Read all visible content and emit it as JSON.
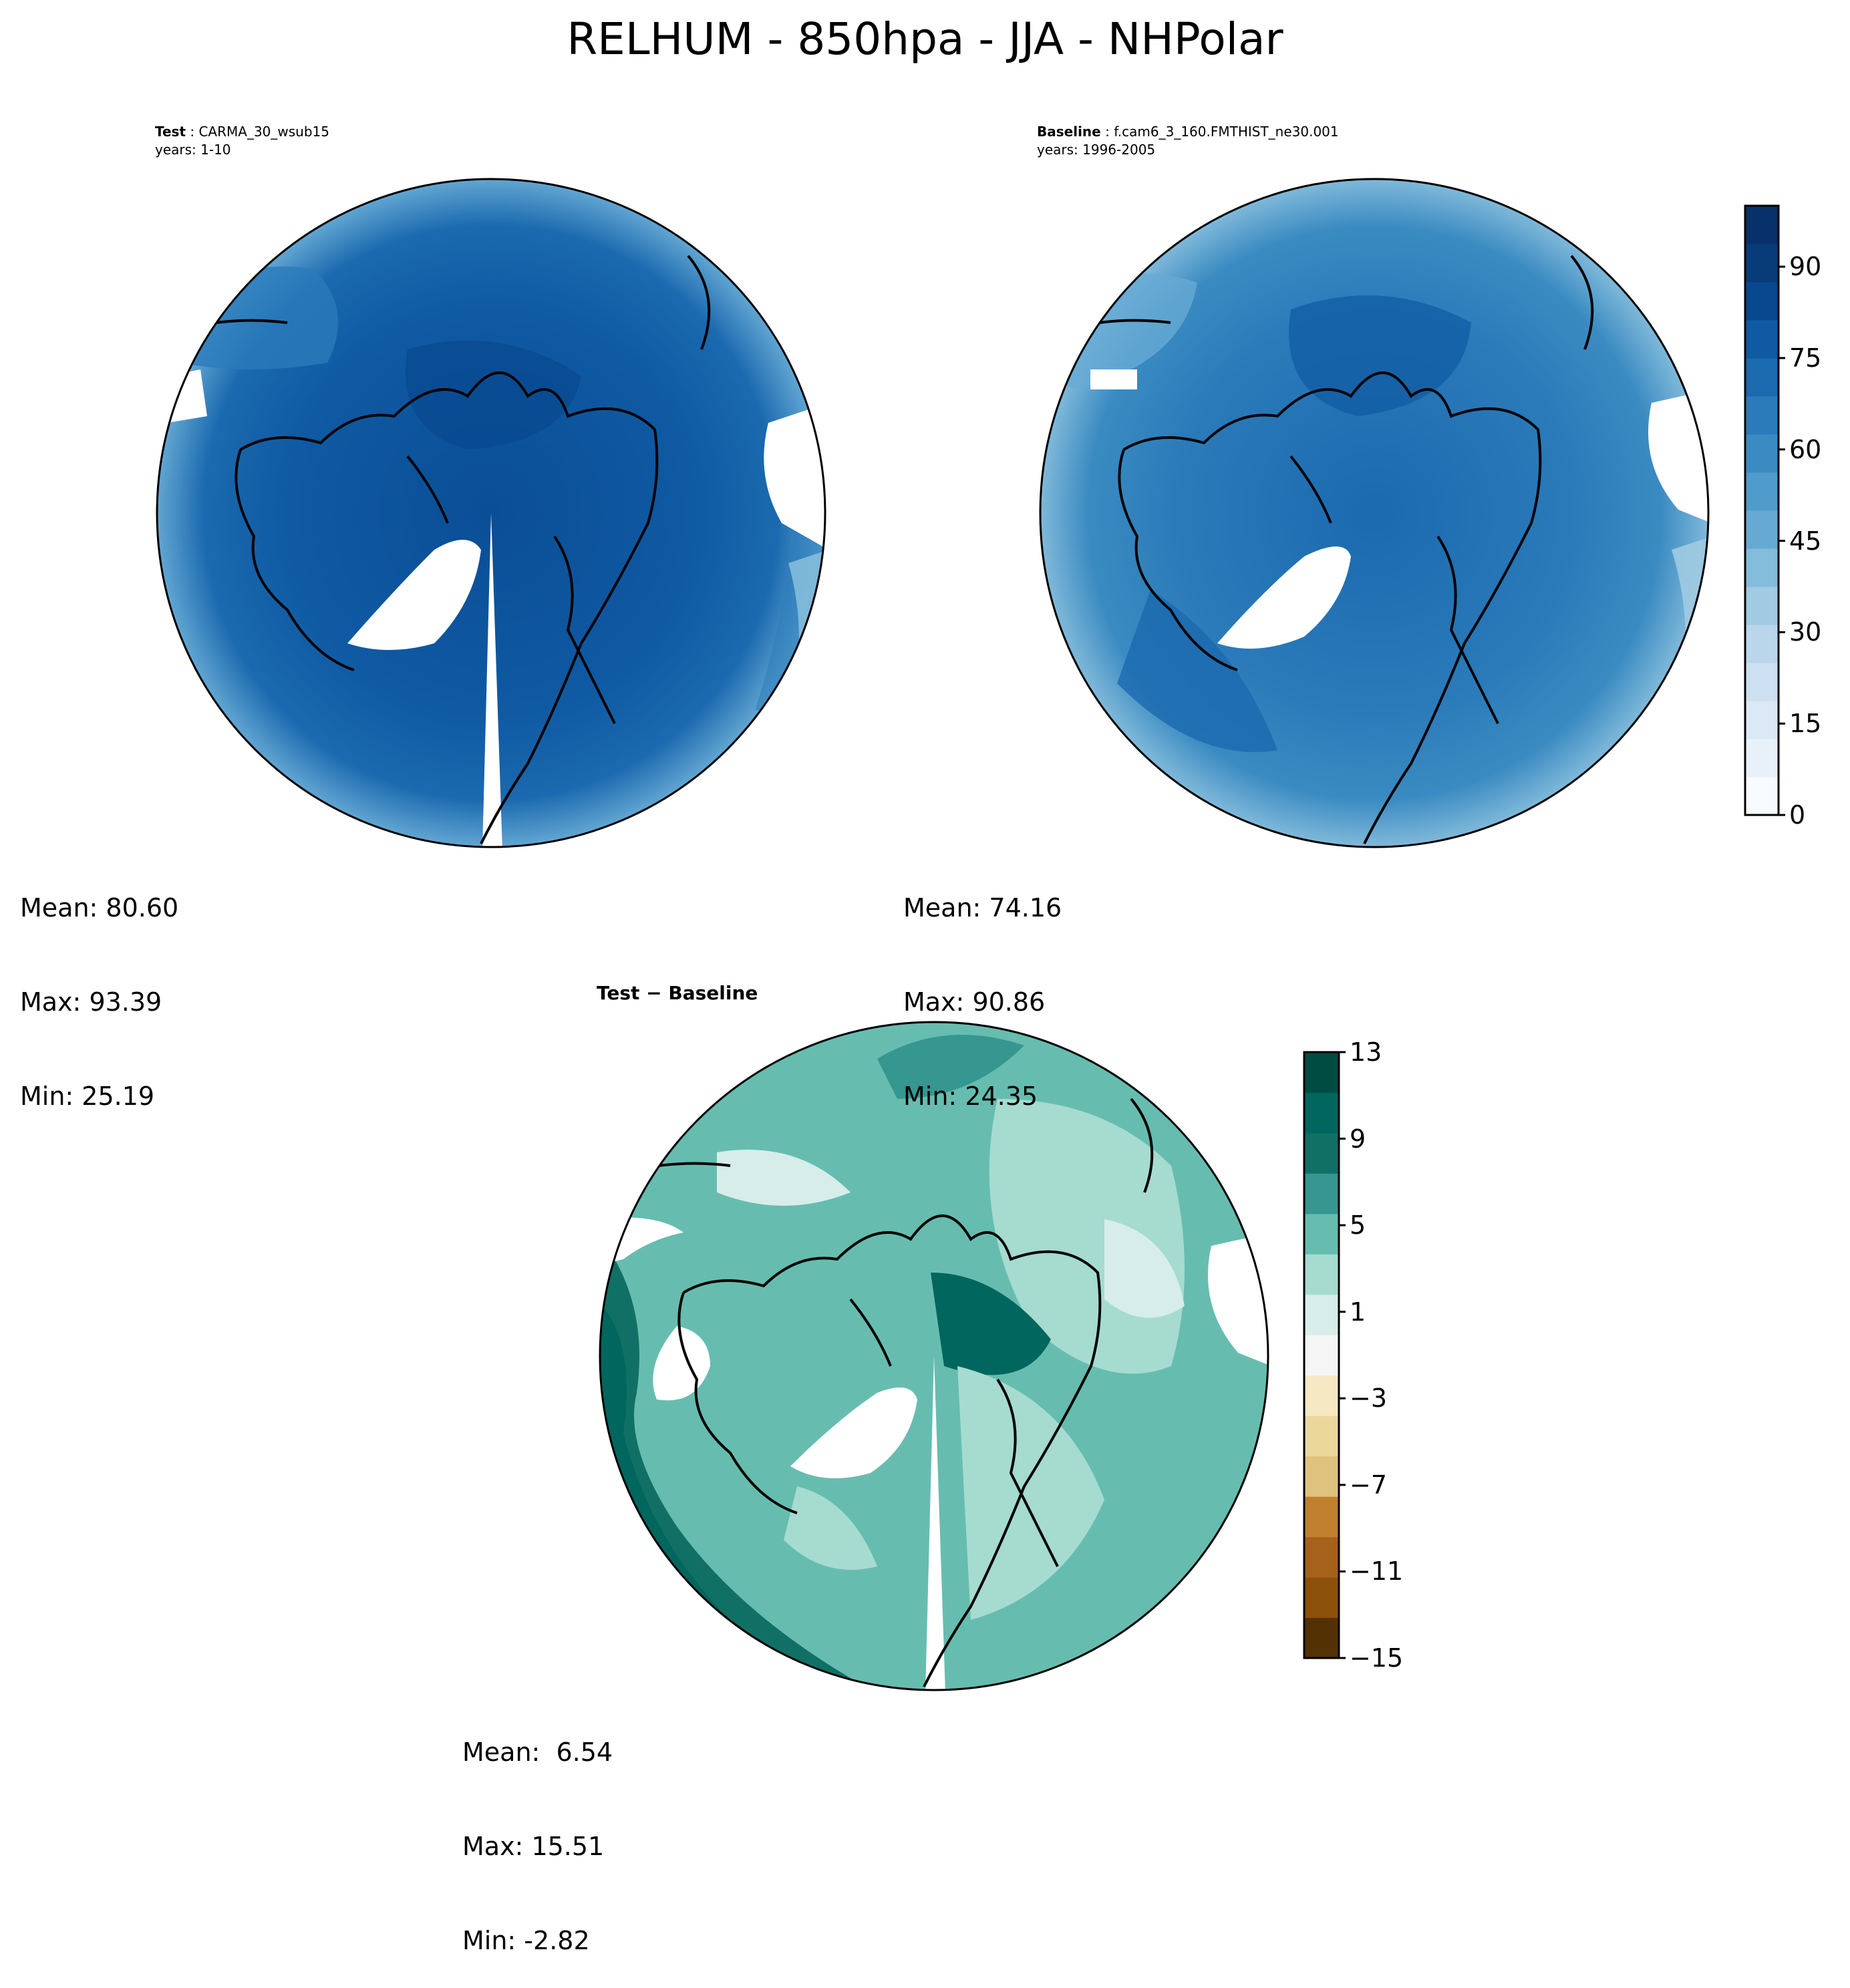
{
  "title": "RELHUM - 850hpa - JJA - NHPolar",
  "panels": [
    {
      "role": "Test",
      "case": "CARMA_30_wsub15",
      "years_label": "years: 1-10",
      "stats": {
        "mean": "Mean: 80.60",
        "max": "Max: 93.39",
        "min": "Min: 25.19"
      }
    },
    {
      "role": "Baseline",
      "case": "f.cam6_3_160.FMTHIST_ne30.001",
      "years_label": "years: 1996-2005",
      "stats": {
        "mean": "Mean: 74.16",
        "max": "Max: 90.86",
        "min": "Min: 24.35"
      }
    },
    {
      "role": "Test − Baseline",
      "case": "",
      "years_label": "",
      "stats": {
        "mean": "Mean:  6.54",
        "max": "Max: 15.51",
        "min": "Min: -2.82"
      }
    }
  ],
  "colorbars": {
    "absolute": {
      "ticks": [
        "0",
        "15",
        "30",
        "45",
        "60",
        "75",
        "90"
      ],
      "range": [
        0,
        100
      ],
      "levels": 20,
      "colormap": "Blues",
      "colors": [
        "#f7fbff",
        "#e8f1fa",
        "#dbe9f6",
        "#cde0f1",
        "#bad6eb",
        "#a0cbe2",
        "#84bcdb",
        "#66aad4",
        "#4f9bcb",
        "#3b8bc2",
        "#2b7bba",
        "#1b69af",
        "#0f5aa3",
        "#08488e",
        "#083c78",
        "#08306b"
      ]
    },
    "difference": {
      "ticks": [
        "13",
        "9",
        "5",
        "1",
        "−3",
        "−7",
        "−11",
        "−15"
      ],
      "range": [
        -15,
        13
      ],
      "colormap": "BrBG",
      "colors": [
        "#543005",
        "#8c510a",
        "#a6611a",
        "#bf812d",
        "#dfc27d",
        "#ebd79c",
        "#f6e8c3",
        "#f5f5f5",
        "#d6ede9",
        "#a6dbd0",
        "#66bdaf",
        "#35978f",
        "#117065",
        "#01665e",
        "#004c42"
      ]
    }
  },
  "map_colors": {
    "test_fill": "#0f5aa3",
    "baseline_fill": "#2b7bba",
    "diff_fill": "#66bdaf"
  }
}
